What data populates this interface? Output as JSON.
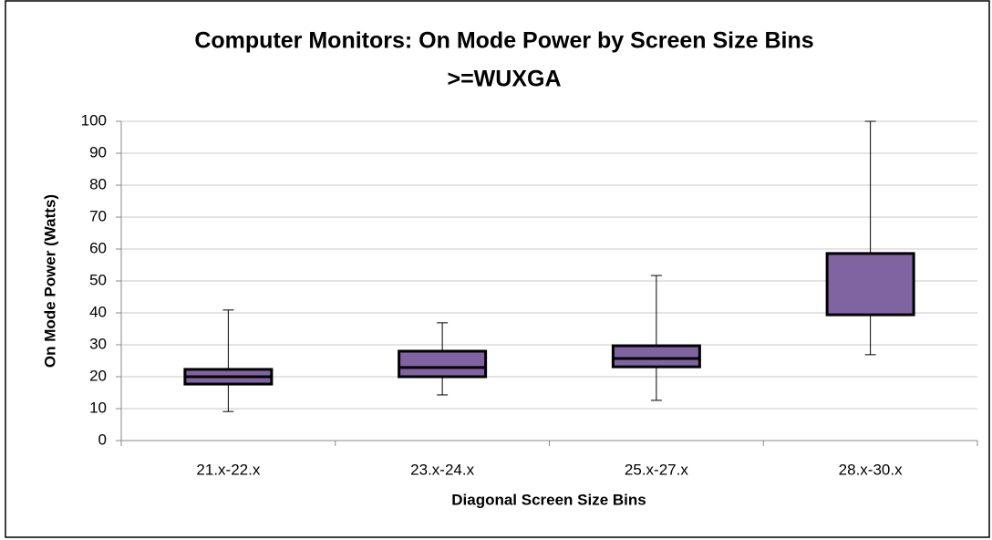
{
  "chart_data": {
    "type": "box",
    "title": [
      "Computer Monitors: On Mode Power by Screen Size Bins",
      ">=WUXGA"
    ],
    "x_label": "Diagonal Screen Size Bins",
    "y_label": "On Mode Power (Watts)",
    "categories": [
      "21.x-22.x",
      "23.x-24.x",
      "25.x-27.x",
      "28.x-30.x"
    ],
    "min": [
      9.1,
      14.3,
      12.6,
      26.9
    ],
    "q1": [
      17.7,
      20,
      23.1,
      39.4
    ],
    "median": [
      20,
      22.9,
      25.7,
      null
    ],
    "q3": [
      22.3,
      28,
      29.7,
      58.6
    ],
    "max": [
      40.9,
      36.9,
      51.7,
      100
    ],
    "color": "#8064a2",
    "ylim": [
      0,
      100
    ],
    "yticks": [
      0,
      10,
      20,
      30,
      40,
      50,
      60,
      70,
      80,
      90,
      100
    ],
    "grid": true
  }
}
